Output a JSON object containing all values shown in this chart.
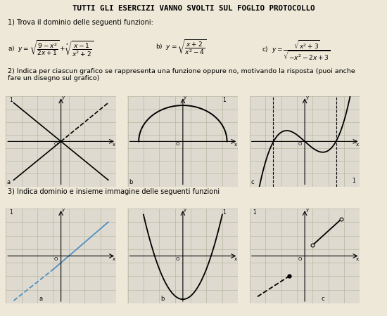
{
  "title": "TUTTI GLI ESERCIZI VANNO SVOLTI SUL FOGLIO PROTOCOLLO",
  "q1_text": "1) Trova il dominio delle seguenti funzioni:",
  "q2_text": "2) Indica per ciascun grafico se rappresenta una funzione oppure no, motivando la risposta (puoi anche\nfare un disegno sul grafico)",
  "q3_text": "3) Indica dominio e insieme immagine delle seguenti funzioni",
  "bg_color": "#ede8d8",
  "grid_color": "#b8b8a0",
  "panel_bg": "#dedad0"
}
